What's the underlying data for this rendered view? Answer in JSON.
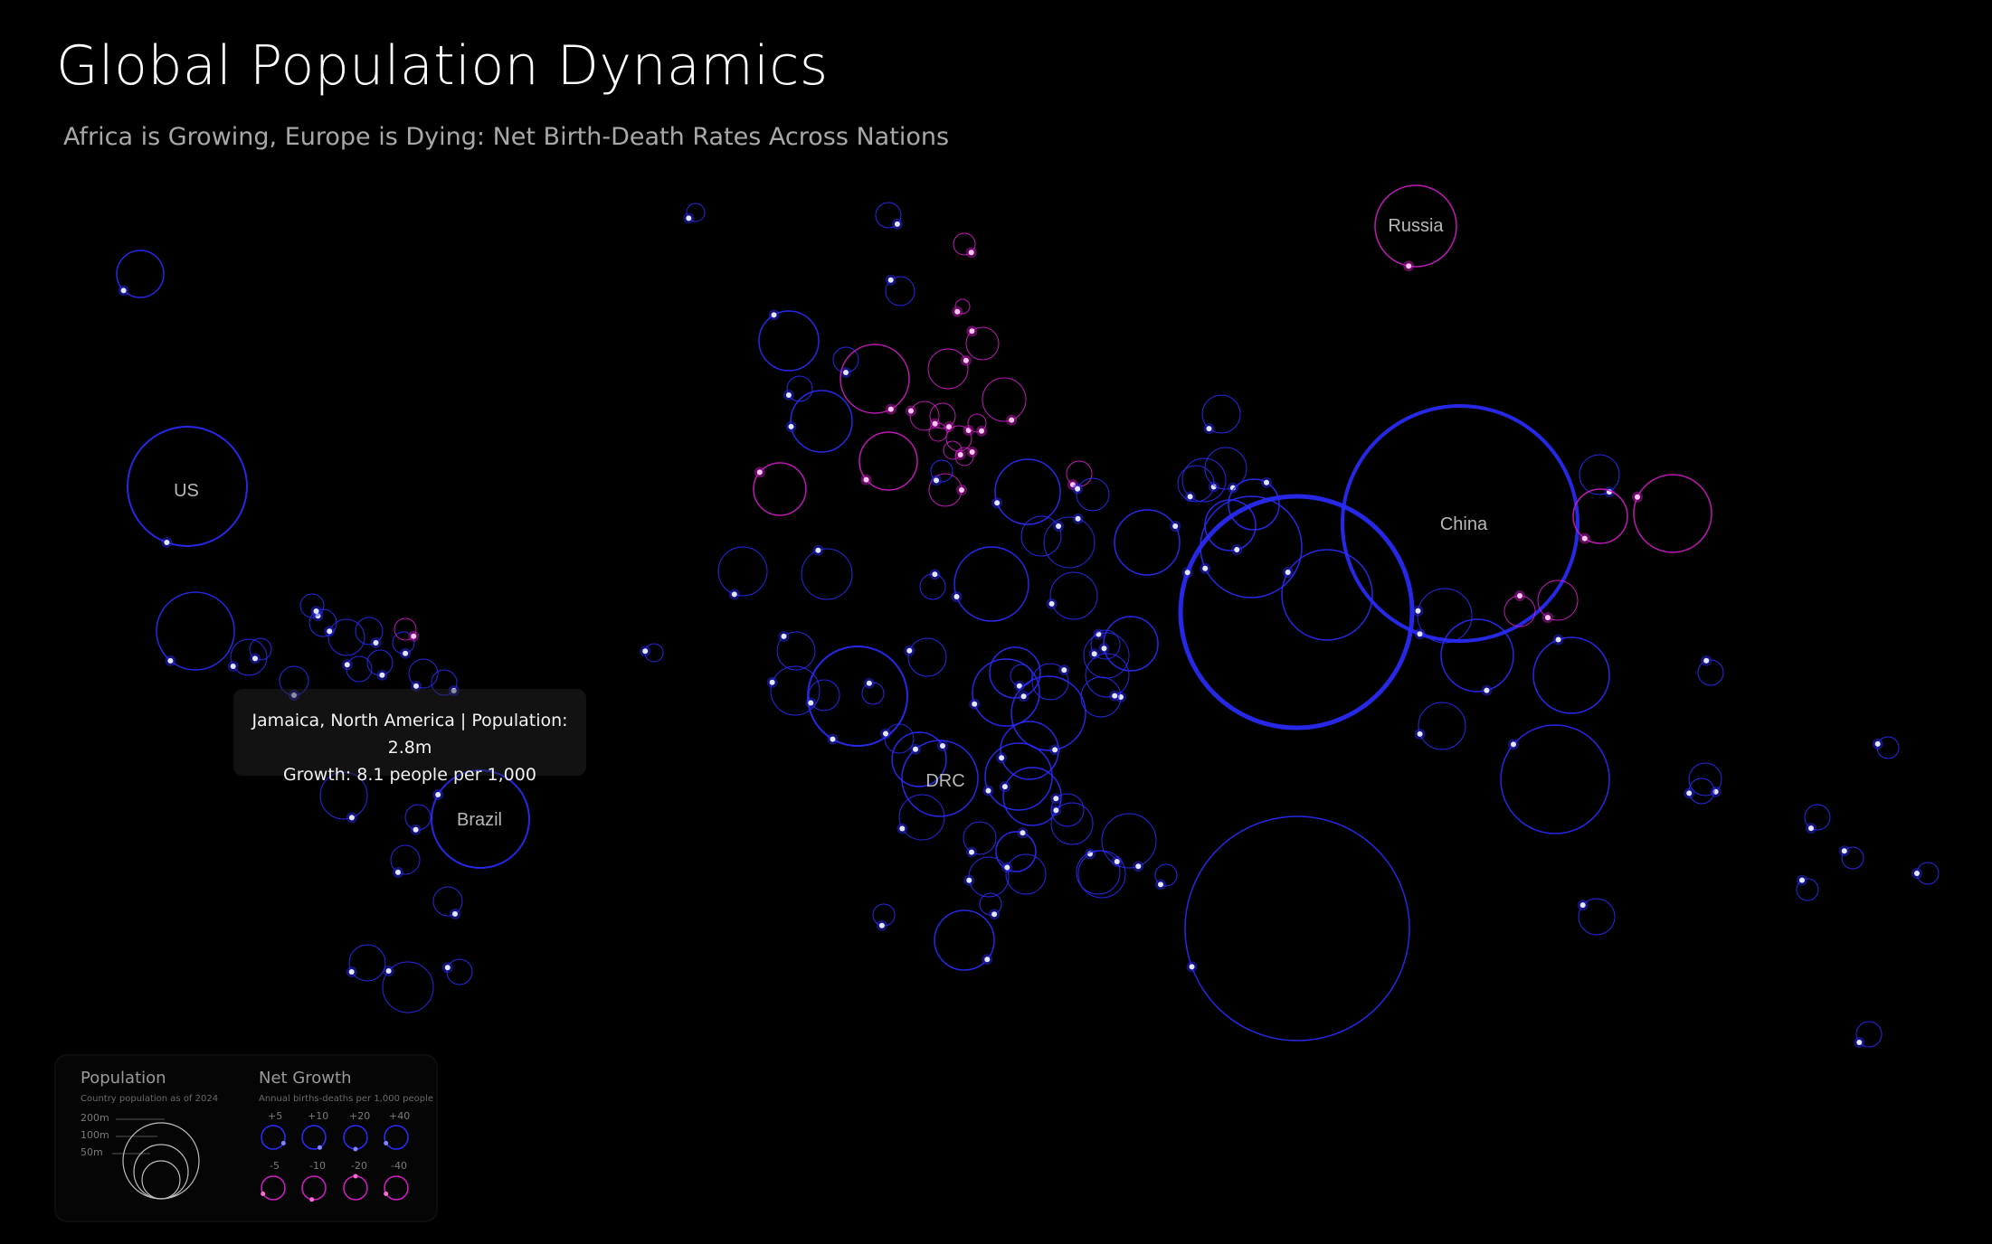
{
  "page": {
    "title": "Global Population Dynamics",
    "subtitle": "Africa is Growing, Europe is Dying: Net Birth-Death Rates Across Nations"
  },
  "colors": {
    "background": "#000000",
    "growth": "#2b2bff",
    "growth_dot": "#7f86ff",
    "decline": "#d21bc8",
    "decline_dot": "#ff6ad5"
  },
  "tooltip": {
    "line1": "Jamaica, North America | Population: 2.8m",
    "line2": "Growth: 8.1 people per 1,000"
  },
  "legend": {
    "population_title": "Population",
    "population_sub": "Country population as of 2024",
    "size_labels": [
      "200m",
      "100m",
      "50m"
    ],
    "growth_title": "Net Growth",
    "growth_sub": "Annual births-deaths per 1,000 people",
    "positive_labels": [
      "+5",
      "+10",
      "+20",
      "+40"
    ],
    "negative_labels": [
      "-5",
      "-10",
      "-20",
      "-40"
    ]
  },
  "chart_data": {
    "type": "scatter",
    "encoding": "bubble radius = population; dot angle on ring = net growth (births minus deaths per 1,000); blue = growing, magenta = declining",
    "labeled_countries": [
      {
        "name": "US",
        "population_m": 340,
        "growth": 2
      },
      {
        "name": "Brazil",
        "population_m": 212,
        "growth": 6
      },
      {
        "name": "DRC",
        "population_m": 109,
        "growth": 32
      },
      {
        "name": "Russia",
        "population_m": 144,
        "growth": -4
      },
      {
        "name": "China",
        "population_m": 1410,
        "growth": -1
      },
      {
        "name": "Jamaica",
        "population_m": 2.8,
        "growth": 8.1
      }
    ]
  }
}
